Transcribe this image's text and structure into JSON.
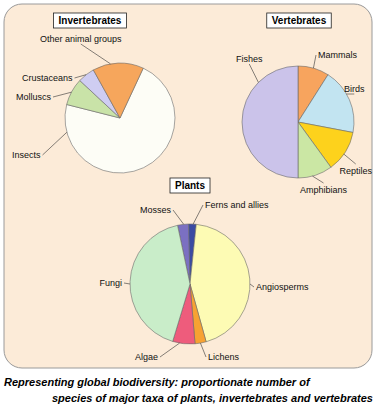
{
  "chart_data": [
    {
      "type": "pie",
      "title": "Invertebrates",
      "categories": [
        "Insects",
        "Molluscs",
        "Crustaceans",
        "Other animal groups"
      ],
      "values": [
        72,
        8,
        5,
        15
      ],
      "colors": [
        "#fdfdf6",
        "#c9e3a8",
        "#cfcdf2",
        "#f6a65c"
      ]
    },
    {
      "type": "pie",
      "title": "Vertebrates",
      "categories": [
        "Mammals",
        "Birds",
        "Reptiles",
        "Amphibians",
        "Fishes"
      ],
      "values": [
        9,
        19,
        12,
        10,
        50
      ],
      "colors": [
        "#f7a45e",
        "#c2e4f1",
        "#fdd21c",
        "#cbe7a4",
        "#cbc3ea"
      ]
    },
    {
      "type": "pie",
      "title": "Plants",
      "categories": [
        "Mosses",
        "Ferns and allies",
        "Angiosperms",
        "Lichens",
        "Algae",
        "Fungi"
      ],
      "values": [
        3,
        2,
        44,
        3,
        6,
        42
      ],
      "colors": [
        "#7b70c2",
        "#3b4ba2",
        "#fdfbb4",
        "#f7a232",
        "#ee5c7c",
        "#c9edc9"
      ]
    }
  ],
  "caption": [
    "Representing global biodiversity: proportionate number of",
    "species of major taxa of plants, invertebrates and vertebrates"
  ]
}
